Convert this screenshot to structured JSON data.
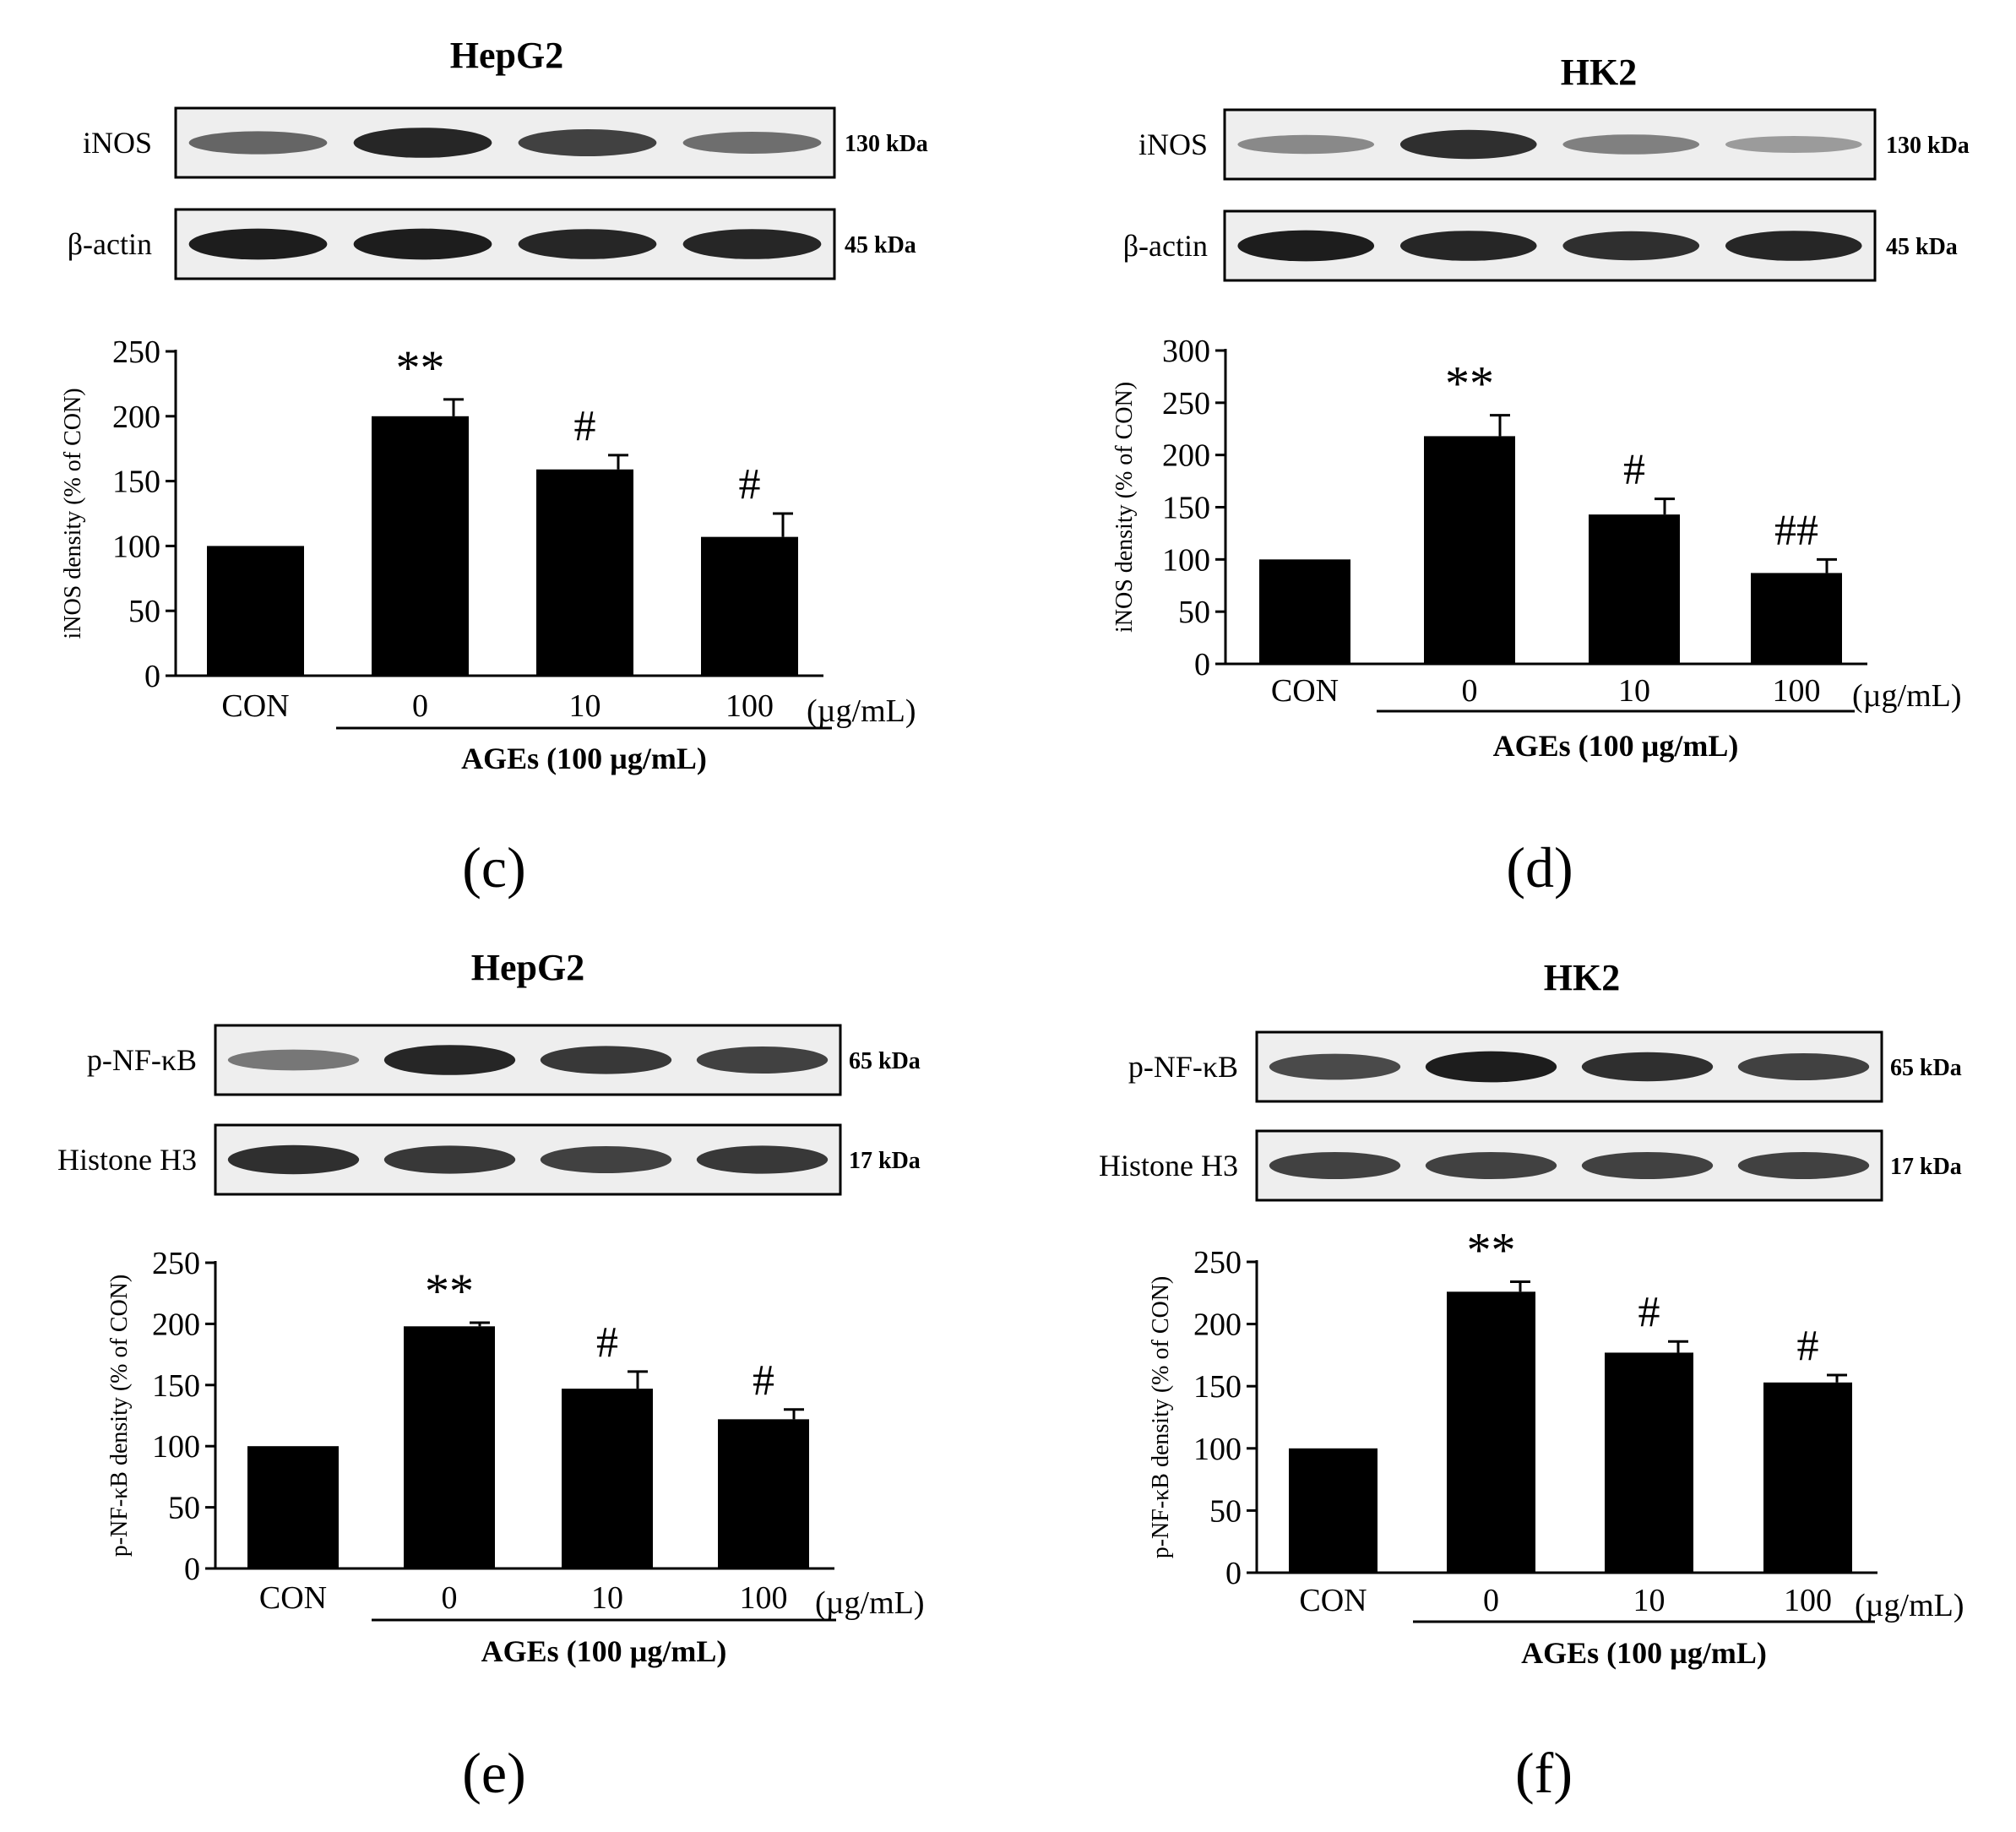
{
  "units_label": "(µg/mL)",
  "treatment_label": "AGEs (100 µg/mL)",
  "panels": [
    {
      "id": "c",
      "letter": "(c)",
      "title": "HepG2",
      "blots": [
        {
          "protein": "iNOS",
          "size": "130 kDa",
          "intensity": [
            0.55,
            0.9,
            0.75,
            0.5
          ]
        },
        {
          "protein": "β-actin",
          "size": "45 kDa",
          "intensity": [
            0.95,
            0.95,
            0.9,
            0.9
          ]
        }
      ]
    },
    {
      "id": "d",
      "letter": "(d)",
      "title": "HK2",
      "blots": [
        {
          "protein": "iNOS",
          "size": "130 kDa",
          "intensity": [
            0.35,
            0.85,
            0.4,
            0.25
          ]
        },
        {
          "protein": "β-actin",
          "size": "45 kDa",
          "intensity": [
            0.95,
            0.9,
            0.85,
            0.9
          ]
        }
      ]
    },
    {
      "id": "e",
      "letter": "(e)",
      "title": "HepG2",
      "blots": [
        {
          "protein": "p-NF-κB",
          "size": "65 kDa",
          "intensity": [
            0.45,
            0.9,
            0.8,
            0.75
          ]
        },
        {
          "protein": "Histone H3",
          "size": "17 kDa",
          "intensity": [
            0.85,
            0.8,
            0.75,
            0.8
          ]
        }
      ]
    },
    {
      "id": "f",
      "letter": "(f)",
      "title": "HK2",
      "blots": [
        {
          "protein": "p-NF-κB",
          "size": "65 kDa",
          "intensity": [
            0.7,
            0.95,
            0.85,
            0.75
          ]
        },
        {
          "protein": "Histone H3",
          "size": "17 kDa",
          "intensity": [
            0.75,
            0.75,
            0.75,
            0.75
          ]
        }
      ]
    }
  ],
  "chart_data": [
    {
      "panel": "c",
      "type": "bar",
      "categories": [
        "CON",
        "0",
        "10",
        "100"
      ],
      "values": [
        100,
        200,
        159,
        107
      ],
      "errors": [
        0,
        13,
        11,
        18
      ],
      "annotations": [
        "",
        "**",
        "#",
        "#"
      ],
      "ylabel": "iNOS density (% of CON)",
      "ylim": [
        0,
        250
      ],
      "yticks": [
        0,
        50,
        100,
        150,
        200,
        250
      ]
    },
    {
      "panel": "d",
      "type": "bar",
      "categories": [
        "CON",
        "0",
        "10",
        "100"
      ],
      "values": [
        100,
        218,
        143,
        87
      ],
      "errors": [
        0,
        20,
        15,
        13
      ],
      "annotations": [
        "",
        "**",
        "#",
        "##"
      ],
      "ylabel": "iNOS density (% of CON)",
      "ylim": [
        0,
        300
      ],
      "yticks": [
        0,
        50,
        100,
        150,
        200,
        250,
        300
      ]
    },
    {
      "panel": "e",
      "type": "bar",
      "categories": [
        "CON",
        "0",
        "10",
        "100"
      ],
      "values": [
        100,
        198,
        147,
        122
      ],
      "errors": [
        0,
        3,
        14,
        8
      ],
      "annotations": [
        "",
        "**",
        "#",
        "#"
      ],
      "ylabel": "p-NF-κB density (% of CON)",
      "ylim": [
        0,
        250
      ],
      "yticks": [
        0,
        50,
        100,
        150,
        200,
        250
      ]
    },
    {
      "panel": "f",
      "type": "bar",
      "categories": [
        "CON",
        "0",
        "10",
        "100"
      ],
      "values": [
        100,
        226,
        177,
        153
      ],
      "errors": [
        0,
        8,
        9,
        6
      ],
      "annotations": [
        "",
        "**",
        "#",
        "#"
      ],
      "ylabel": "p-NF-κB density (% of CON)",
      "ylim": [
        0,
        250
      ],
      "yticks": [
        0,
        50,
        100,
        150,
        200,
        250
      ]
    }
  ]
}
